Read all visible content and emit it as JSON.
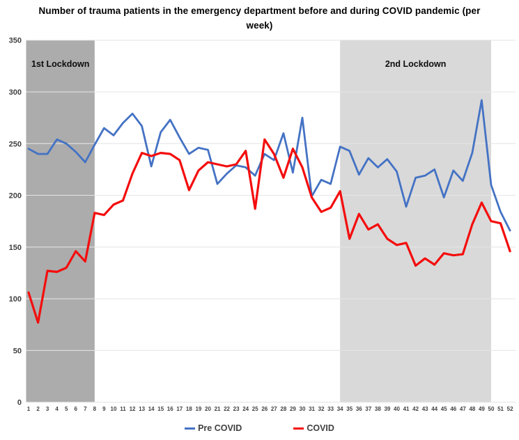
{
  "title": "Number of trauma patients in the emergency department before and during COVID pandemic (per week)",
  "legend": [
    {
      "label": "Pre COVID",
      "color": "#4472c4"
    },
    {
      "label": "COVID",
      "color": "#f40d0d"
    }
  ],
  "annotations": [
    {
      "label": "1st Lockdown",
      "week_start": 1,
      "week_end": 8,
      "color": "#acacac"
    },
    {
      "label": "2nd Lockdown",
      "week_start": 34,
      "week_end": 50,
      "color": "#d9d9d9"
    }
  ],
  "chart_data": {
    "type": "line",
    "title": "Number of trauma patients in the emergency department before and during COVID pandemic (per week)",
    "xlabel": "",
    "ylabel": "",
    "ylim": [
      0,
      350
    ],
    "yticks": [
      0,
      50,
      100,
      150,
      200,
      250,
      300,
      350
    ],
    "grid": true,
    "legend_position": "bottom",
    "x": [
      1,
      2,
      3,
      4,
      5,
      6,
      7,
      8,
      9,
      10,
      11,
      12,
      13,
      14,
      15,
      16,
      17,
      18,
      19,
      20,
      21,
      22,
      23,
      24,
      25,
      26,
      27,
      28,
      29,
      30,
      31,
      32,
      33,
      34,
      35,
      36,
      37,
      38,
      39,
      40,
      41,
      42,
      43,
      44,
      45,
      46,
      47,
      48,
      49,
      50,
      51,
      52
    ],
    "series": [
      {
        "name": "Pre COVID",
        "color": "#4472c4",
        "values": [
          245,
          240,
          240,
          254,
          250,
          242,
          232,
          249,
          265,
          258,
          270,
          279,
          267,
          228,
          261,
          273,
          256,
          240,
          246,
          244,
          211,
          221,
          229,
          227,
          219,
          240,
          234,
          260,
          222,
          275,
          199,
          215,
          211,
          247,
          243,
          220,
          236,
          227,
          235,
          223,
          189,
          217,
          219,
          225,
          198,
          224,
          214,
          241,
          292,
          210,
          184,
          166
        ]
      },
      {
        "name": "COVID",
        "color": "#f40d0d",
        "values": [
          106,
          77,
          127,
          126,
          130,
          146,
          136,
          183,
          181,
          191,
          195,
          221,
          241,
          238,
          241,
          240,
          234,
          205,
          224,
          232,
          230,
          228,
          230,
          243,
          187,
          254,
          240,
          217,
          245,
          227,
          198,
          184,
          188,
          204,
          158,
          182,
          167,
          172,
          158,
          152,
          154,
          132,
          139,
          133,
          144,
          142,
          143,
          172,
          193,
          175,
          173,
          146
        ]
      }
    ]
  }
}
